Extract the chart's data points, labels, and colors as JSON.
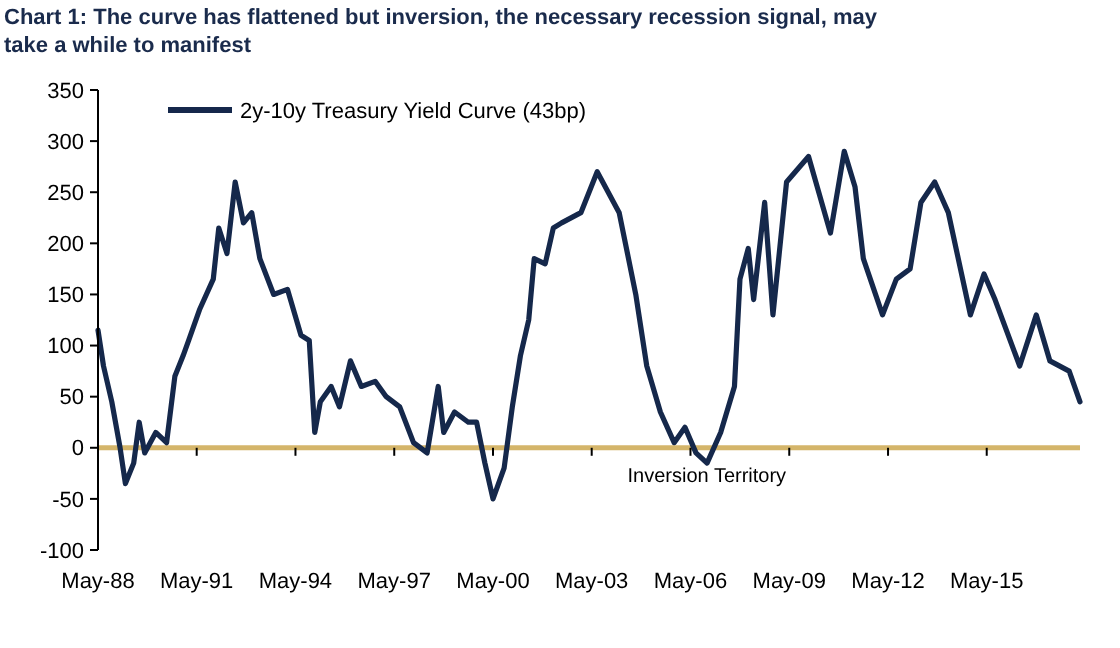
{
  "chart_data": {
    "type": "line",
    "title": "Chart 1: The curve has flattened but inversion, the necessary recession signal, may take a while to manifest",
    "x": [
      "1988-05",
      "1988-07",
      "1988-10",
      "1989-01",
      "1989-03",
      "1989-06",
      "1989-08",
      "1989-10",
      "1990-02",
      "1990-06",
      "1990-09",
      "1990-12",
      "1991-02",
      "1991-06",
      "1991-11",
      "1992-01",
      "1992-04",
      "1992-07",
      "1992-10",
      "1993-01",
      "1993-04",
      "1993-09",
      "1994-02",
      "1994-07",
      "1994-10",
      "1994-12",
      "1995-02",
      "1995-06",
      "1995-09",
      "1996-01",
      "1996-05",
      "1996-10",
      "1997-02",
      "1997-07",
      "1997-12",
      "1998-05",
      "1998-09",
      "1998-11",
      "1999-03",
      "1999-08",
      "1999-11",
      "2000-02",
      "2000-05",
      "2000-09",
      "2000-12",
      "2001-03",
      "2001-06",
      "2001-08",
      "2001-12",
      "2002-03",
      "2002-06",
      "2003-01",
      "2003-07",
      "2004-03",
      "2004-09",
      "2005-01",
      "2005-06",
      "2005-11",
      "2006-03",
      "2006-07",
      "2006-11",
      "2007-04",
      "2007-09",
      "2007-11",
      "2008-02",
      "2008-04",
      "2008-08",
      "2008-11",
      "2009-04",
      "2009-12",
      "2010-08",
      "2011-01",
      "2011-05",
      "2011-08",
      "2012-03",
      "2012-08",
      "2013-01",
      "2013-05",
      "2013-10",
      "2014-03",
      "2014-11",
      "2015-04",
      "2015-08",
      "2016-05",
      "2016-11",
      "2017-04",
      "2017-11",
      "2018-03"
    ],
    "series": [
      {
        "name": "2y-10y Treasury Yield Curve (43bp)",
        "color": "#15284b",
        "values": [
          115,
          80,
          45,
          0,
          -35,
          -15,
          25,
          -5,
          15,
          5,
          70,
          90,
          105,
          135,
          165,
          215,
          190,
          260,
          220,
          230,
          185,
          150,
          155,
          110,
          105,
          15,
          45,
          60,
          40,
          85,
          60,
          65,
          50,
          40,
          5,
          -5,
          60,
          15,
          35,
          25,
          25,
          -15,
          -50,
          -20,
          40,
          90,
          125,
          185,
          180,
          215,
          220,
          230,
          270,
          230,
          150,
          80,
          35,
          5,
          20,
          -5,
          -15,
          15,
          60,
          165,
          195,
          145,
          240,
          130,
          260,
          285,
          210,
          290,
          255,
          185,
          130,
          165,
          175,
          240,
          260,
          230,
          130,
          170,
          145,
          80,
          130,
          85,
          75,
          45
        ]
      }
    ],
    "xlim": [
      "1988-05",
      "2018-03"
    ],
    "xticks": [
      {
        "value": "1988-05",
        "label": "May-88"
      },
      {
        "value": "1991-05",
        "label": "May-91"
      },
      {
        "value": "1994-05",
        "label": "May-94"
      },
      {
        "value": "1997-05",
        "label": "May-97"
      },
      {
        "value": "2000-05",
        "label": "May-00"
      },
      {
        "value": "2003-05",
        "label": "May-03"
      },
      {
        "value": "2006-05",
        "label": "May-06"
      },
      {
        "value": "2009-05",
        "label": "May-09"
      },
      {
        "value": "2012-05",
        "label": "May-12"
      },
      {
        "value": "2015-05",
        "label": "May-15"
      }
    ],
    "ylim": [
      -100,
      350
    ],
    "yticks": [
      -100,
      -50,
      0,
      50,
      100,
      150,
      200,
      250,
      300,
      350
    ],
    "ref_lines": [
      {
        "axis": "y",
        "value": 0,
        "color": "#d4b56a"
      }
    ],
    "annotations": [
      "Inversion Territory"
    ],
    "legend": "top left",
    "grid": false,
    "line_style": "solid",
    "marker": "none"
  }
}
